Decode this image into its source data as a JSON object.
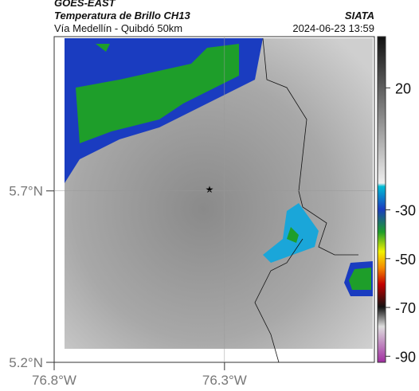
{
  "header": {
    "satellite": "GOES-EAST",
    "product": "Temperatura de Brillo CH13",
    "source": "SIATA",
    "region": "Vía Medellín - Quibdó 50km",
    "datetime": "2024-06-23 13:59"
  },
  "map": {
    "ylim": [
      5.2,
      6.15
    ],
    "xlim": [
      -76.8,
      -75.86
    ],
    "yticks": [
      {
        "value": 5.7,
        "label": "5.7°N"
      },
      {
        "value": 5.2,
        "label": "5.2°N"
      }
    ],
    "xticks": [
      {
        "value": -76.8,
        "label": "76.8°W"
      },
      {
        "value": -76.3,
        "label": "76.3°W"
      }
    ]
  },
  "colorbar": {
    "lim": [
      -92.5,
      41
    ],
    "ticks": [
      20,
      -30,
      -50,
      -70,
      -90
    ]
  }
}
